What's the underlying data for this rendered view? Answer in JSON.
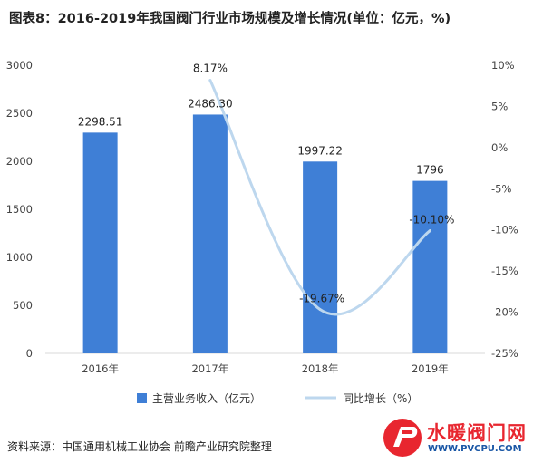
{
  "title": "图表8：2016-2019年我国阀门行业市场规模及增长情况(单位：亿元，%)",
  "source": "资料来源：中国通用机械工业协会 前瞻产业研究院整理",
  "logo": {
    "name": "水暖阀门网",
    "url": "WWW.PVCPU.COM"
  },
  "colors": {
    "bar": "#3f7fd6",
    "line": "#bdd7ee",
    "axis": "#d9d9d9",
    "logo_red": "#e8262f",
    "logo_blue": "#1a57a6"
  },
  "chart_data": {
    "type": "bar",
    "categories": [
      "2016年",
      "2017年",
      "2018年",
      "2019年"
    ],
    "series": [
      {
        "name": "主营业务收入（亿元）",
        "type": "bar",
        "axis": "left",
        "values": [
          2298.51,
          2486.3,
          1997.22,
          1796
        ],
        "labels": [
          "2298.51",
          "2486.30",
          "1997.22",
          "1796"
        ]
      },
      {
        "name": "同比增长（%）",
        "type": "line",
        "axis": "right",
        "values": [
          null,
          8.17,
          -19.67,
          -10.1
        ],
        "labels": [
          "",
          "8.17%",
          "-19.67%",
          "-10.10%"
        ]
      }
    ],
    "left_axis": {
      "ylim": [
        0,
        3000
      ],
      "ticks": [
        "0",
        "500",
        "1000",
        "1500",
        "2000",
        "2500",
        "3000"
      ]
    },
    "right_axis": {
      "ylim": [
        -25,
        10
      ],
      "ticks": [
        "-25%",
        "-20%",
        "-15%",
        "-10%",
        "-5%",
        "0%",
        "5%",
        "10%"
      ]
    },
    "legend": "bottom",
    "grid": false
  }
}
